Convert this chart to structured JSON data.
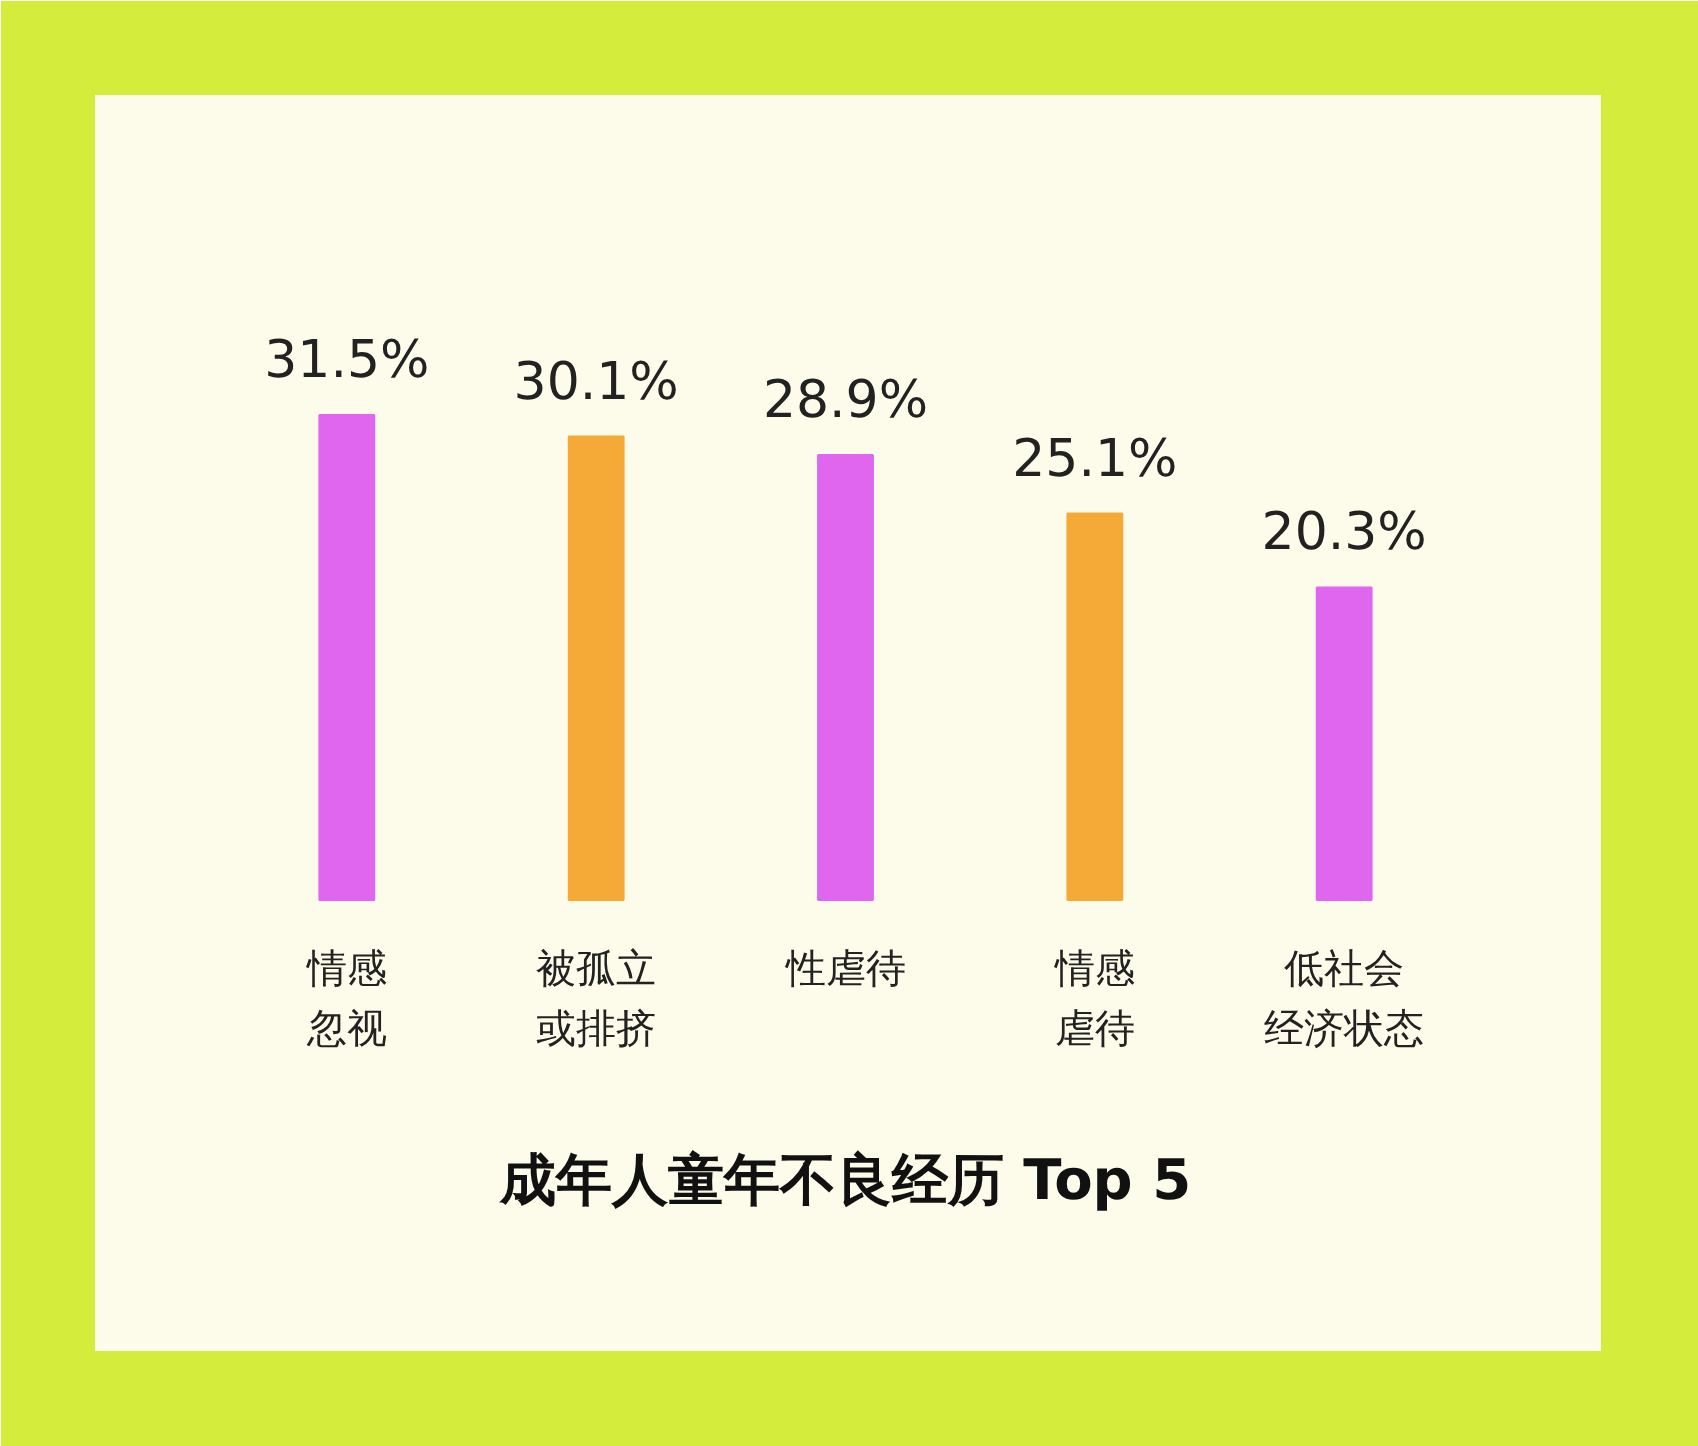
{
  "chart_data": {
    "type": "bar",
    "title": "成年人童年不良经历 Top 5",
    "categories": [
      "情感忽视",
      "被孤立或排挤",
      "性虐待",
      "情感虐待",
      "低社会经济状态"
    ],
    "values": [
      31.5,
      30.1,
      28.9,
      25.1,
      20.3
    ],
    "colors": [
      "#e066f0",
      "#f5aa38",
      "#e066f0",
      "#f5aa38",
      "#e066f0"
    ],
    "value_labels": [
      "31.5%",
      "30.1%",
      "28.9%",
      "25.1%",
      "20.3%"
    ]
  }
}
